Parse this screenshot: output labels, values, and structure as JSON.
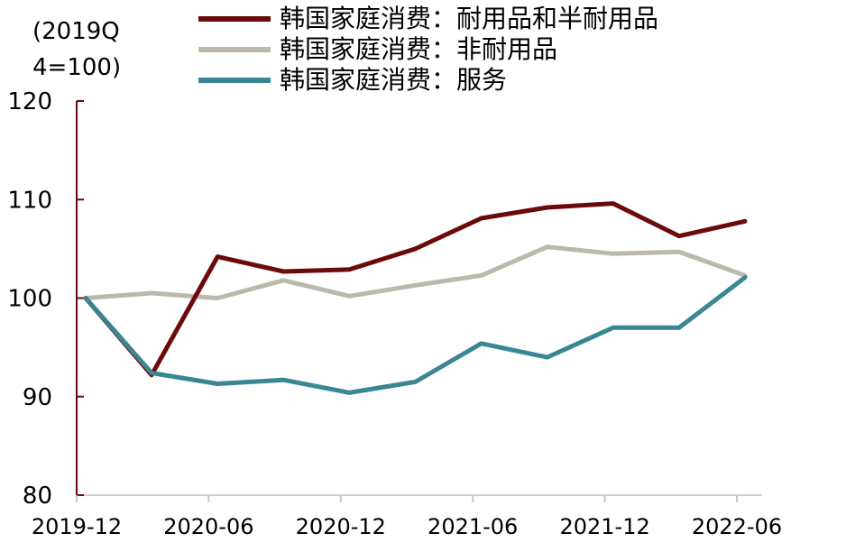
{
  "chart_data": {
    "type": "line",
    "unit_label": [
      "(2019Q",
      "4=100)"
    ],
    "x_tick_labels": [
      "2019-12",
      "2020-06",
      "2020-12",
      "2021-06",
      "2021-12",
      "2022-06"
    ],
    "x": [
      "2019Q4",
      "2020Q1",
      "2020Q2",
      "2020Q3",
      "2020Q4",
      "2021Q1",
      "2021Q2",
      "2021Q3",
      "2021Q4",
      "2022Q1",
      "2022Q2"
    ],
    "ylim": [
      80,
      120
    ],
    "yticks": [
      80,
      90,
      100,
      110,
      120
    ],
    "grid": false,
    "legend_position": "top",
    "series": [
      {
        "name": "韩国家庭消费：耐用品和半耐用品",
        "color": "#6b0a0a",
        "values": [
          100.0,
          92.2,
          104.2,
          102.7,
          102.9,
          105.0,
          108.1,
          109.2,
          109.6,
          106.3,
          107.8
        ]
      },
      {
        "name": "韩国家庭消费：非耐用品",
        "color": "#bdb8ad",
        "values": [
          100.0,
          100.5,
          100.0,
          101.8,
          100.2,
          101.3,
          102.3,
          105.2,
          104.5,
          104.7,
          102.3
        ]
      },
      {
        "name": "韩国家庭消费：服务",
        "color": "#3a8694",
        "values": [
          100.0,
          92.4,
          91.3,
          91.7,
          90.4,
          91.5,
          95.4,
          94.0,
          97.0,
          97.0,
          102.1
        ]
      }
    ]
  }
}
